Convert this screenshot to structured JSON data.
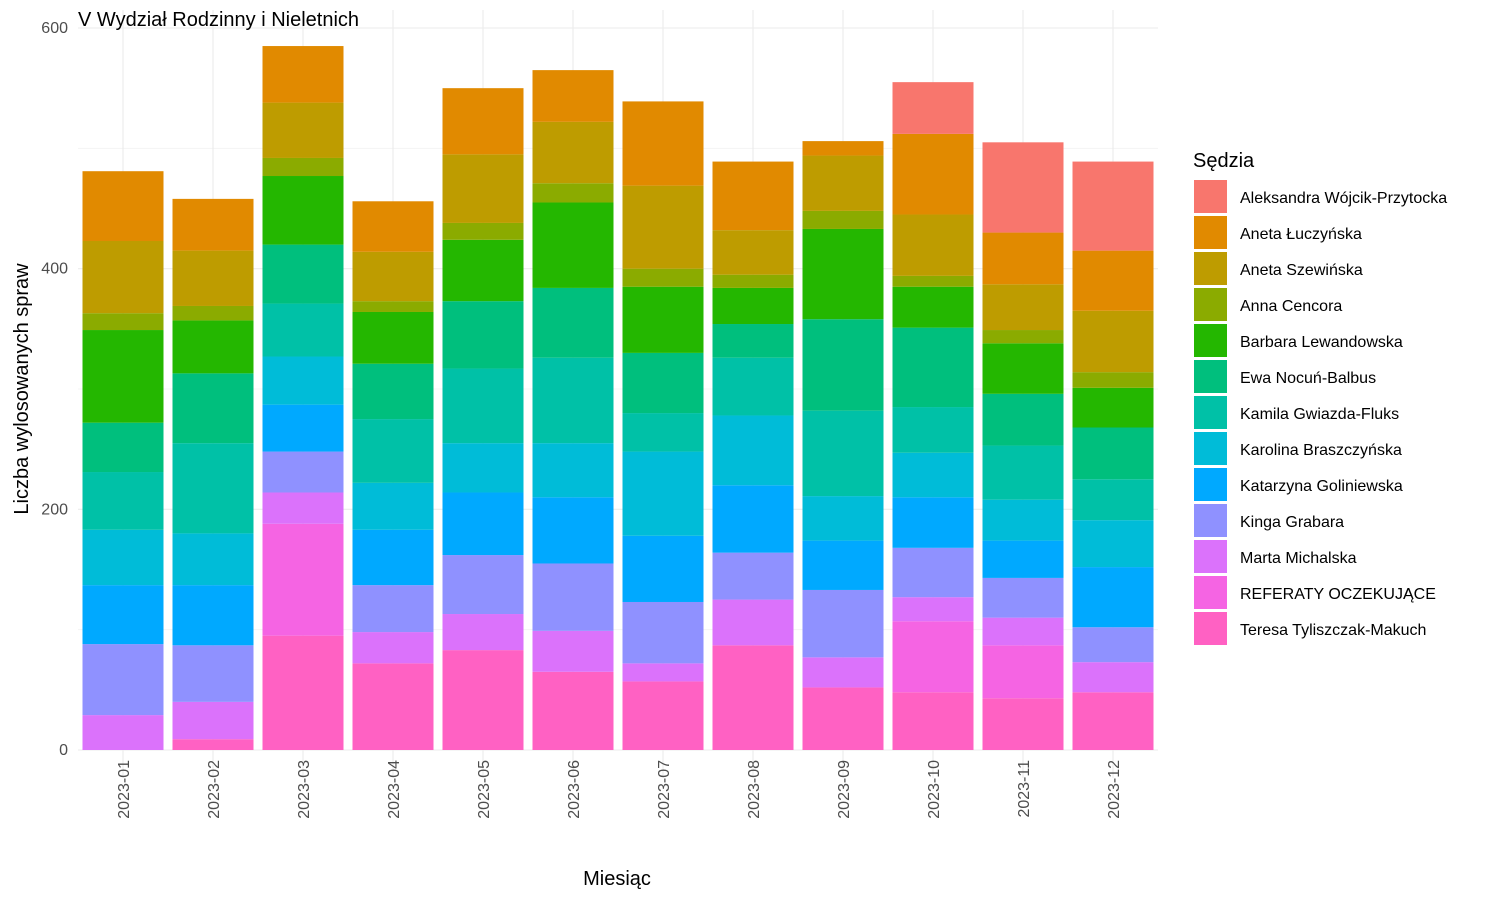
{
  "chart_data": {
    "type": "bar",
    "stacked": true,
    "title": "V Wydział Rodzinny i Nieletnich",
    "xlabel": "Miesiąc",
    "ylabel": "Liczba wylosowanych spraw",
    "ylim": [
      0,
      600
    ],
    "yticks": [
      0,
      200,
      400,
      600
    ],
    "grid": true,
    "legend_title": "Sędzia",
    "legend_position": "right",
    "categories": [
      "2023-01",
      "2023-02",
      "2023-03",
      "2023-04",
      "2023-05",
      "2023-06",
      "2023-07",
      "2023-08",
      "2023-09",
      "2023-10",
      "2023-11",
      "2023-12"
    ],
    "series": [
      {
        "name": "Teresa Tyliszczak-Makuch",
        "color": "#FF61C3",
        "values": [
          0,
          9,
          95,
          72,
          83,
          65,
          57,
          87,
          52,
          48,
          43,
          48
        ]
      },
      {
        "name": "REFERATY OCZEKUJĄCE",
        "color": "#F564E3",
        "values": [
          0,
          0,
          93,
          0,
          0,
          0,
          0,
          0,
          0,
          59,
          44,
          0
        ]
      },
      {
        "name": "Marta Michalska",
        "color": "#DB72FB",
        "values": [
          29,
          31,
          26,
          26,
          30,
          34,
          15,
          38,
          25,
          20,
          23,
          25
        ]
      },
      {
        "name": "Kinga Grabara",
        "color": "#8F91FF",
        "values": [
          59,
          47,
          34,
          39,
          49,
          56,
          51,
          39,
          56,
          41,
          33,
          29
        ]
      },
      {
        "name": "Katarzyna Goliniewska",
        "color": "#00A9FF",
        "values": [
          49,
          50,
          39,
          46,
          52,
          55,
          55,
          56,
          41,
          42,
          31,
          50
        ]
      },
      {
        "name": "Karolina Braszczyńska",
        "color": "#00BCD8",
        "values": [
          46,
          43,
          40,
          39,
          41,
          45,
          70,
          58,
          37,
          37,
          34,
          39
        ]
      },
      {
        "name": "Kamila Gwiazda-Fluks",
        "color": "#00C1A7",
        "values": [
          48,
          75,
          44,
          53,
          62,
          71,
          32,
          48,
          71,
          38,
          45,
          34
        ]
      },
      {
        "name": "Ewa Nocuń-Balbus",
        "color": "#00BF7D",
        "values": [
          41,
          58,
          49,
          46,
          56,
          58,
          50,
          28,
          76,
          66,
          43,
          43
        ]
      },
      {
        "name": "Barbara Lewandowska",
        "color": "#24B700",
        "values": [
          77,
          44,
          57,
          43,
          51,
          71,
          55,
          30,
          75,
          34,
          42,
          33
        ]
      },
      {
        "name": "Anna Cencora",
        "color": "#8BAB00",
        "values": [
          14,
          12,
          15,
          9,
          14,
          16,
          15,
          11,
          15,
          9,
          11,
          13
        ]
      },
      {
        "name": "Aneta Szewińska",
        "color": "#BE9C00",
        "values": [
          60,
          46,
          46,
          41,
          57,
          51,
          69,
          37,
          46,
          51,
          38,
          51
        ]
      },
      {
        "name": "Aneta Łuczyńska",
        "color": "#E18A00",
        "values": [
          58,
          43,
          47,
          42,
          55,
          43,
          70,
          57,
          12,
          67,
          43,
          50
        ]
      },
      {
        "name": "Aleksandra Wójcik-Przytocka",
        "color": "#F8766D",
        "values": [
          0,
          0,
          0,
          0,
          0,
          0,
          0,
          0,
          0,
          43,
          75,
          74
        ]
      }
    ],
    "legend_order": [
      "Aleksandra Wójcik-Przytocka",
      "Aneta Łuczyńska",
      "Aneta Szewińska",
      "Anna Cencora",
      "Barbara Lewandowska",
      "Ewa Nocuń-Balbus",
      "Kamila Gwiazda-Fluks",
      "Karolina Braszczyńska",
      "Katarzyna Goliniewska",
      "Kinga Grabara",
      "Marta Michalska",
      "REFERATY OCZEKUJĄCE",
      "Teresa Tyliszczak-Makuch"
    ]
  }
}
